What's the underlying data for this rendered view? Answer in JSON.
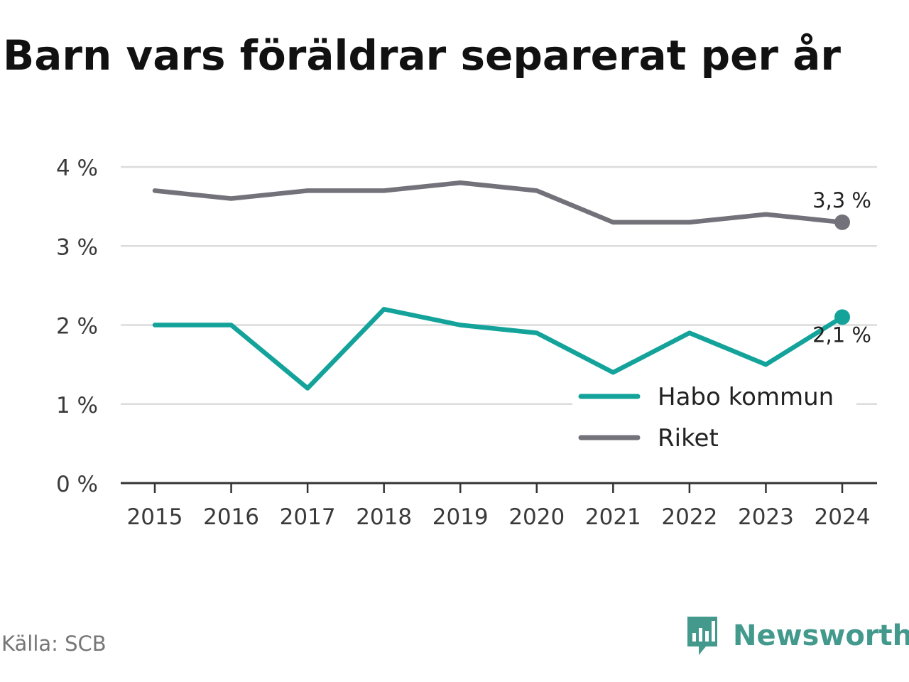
{
  "chart_data": {
    "type": "line",
    "title": "Barn vars föräldrar separerat per år",
    "x": [
      2015,
      2016,
      2017,
      2018,
      2019,
      2020,
      2021,
      2022,
      2023,
      2024
    ],
    "series": [
      {
        "name": "Habo kommun",
        "color": "#14a39a",
        "values": [
          2.0,
          2.0,
          1.2,
          2.2,
          2.0,
          1.9,
          1.4,
          1.9,
          1.5,
          2.1
        ],
        "end_label": "2,1 %"
      },
      {
        "name": "Riket",
        "color": "#73727a",
        "values": [
          3.7,
          3.6,
          3.7,
          3.7,
          3.8,
          3.7,
          3.3,
          3.3,
          3.4,
          3.3
        ],
        "end_label": "3,3 %"
      }
    ],
    "y_ticks": [
      0,
      1,
      2,
      3,
      4
    ],
    "y_tick_labels": [
      "0 %",
      "1 %",
      "2 %",
      "3 %",
      "4 %"
    ],
    "ylim": [
      0,
      4
    ],
    "grid": true,
    "legend_position": "bottom-right"
  },
  "source": "Källa: SCB",
  "brand": {
    "name": "Newsworthy",
    "icon": "newsworthy-logo-icon",
    "color": "#42998c"
  }
}
